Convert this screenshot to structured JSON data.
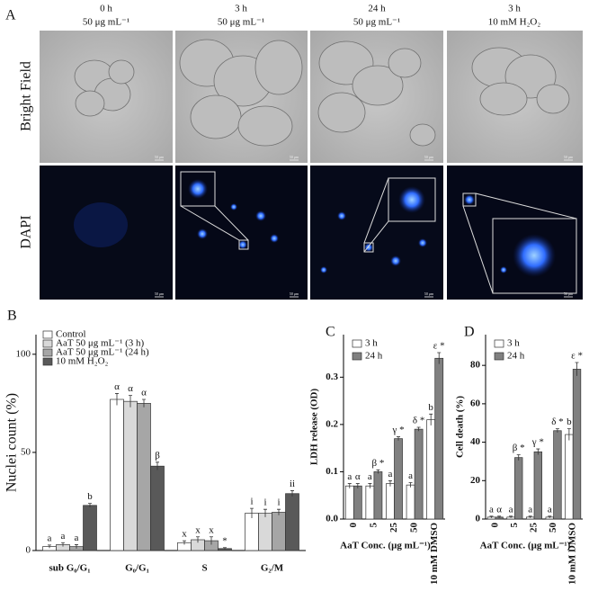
{
  "panel_a": {
    "panel": "A",
    "columns": [
      {
        "time": "0 h",
        "condition": "50 μg mL⁻¹"
      },
      {
        "time": "3 h",
        "condition": "50 μg mL⁻¹"
      },
      {
        "time": "24 h",
        "condition": "50 μg mL⁻¹"
      },
      {
        "time": "3 h",
        "condition": "10 mM H₂O₂"
      }
    ],
    "rows": [
      "Bright Field",
      "DAPI"
    ],
    "scale_bar": "50 μm"
  },
  "chart_data": [
    {
      "type": "bar",
      "panel": "B",
      "ylabel": "Nuclei count (%)",
      "categories": [
        "sub G₀/G₁",
        "G₀/G₁",
        "S",
        "G₂/M"
      ],
      "series": [
        {
          "name": "Control",
          "color": "#ffffff",
          "values": [
            2,
            77,
            4,
            19
          ],
          "errors": [
            0.8,
            3,
            1,
            2.5
          ],
          "annotations": [
            "a",
            "α",
            "x",
            "i"
          ]
        },
        {
          "name": "AaT 50 μg mL⁻¹ (3 h)",
          "color": "#d9d9d9",
          "values": [
            3,
            76,
            5.5,
            19
          ],
          "errors": [
            1,
            3,
            1.5,
            2
          ],
          "annotations": [
            "a",
            "α",
            "x",
            "i"
          ]
        },
        {
          "name": "AaT 50 μg mL⁻¹ (24 h)",
          "color": "#a6a6a6",
          "values": [
            2,
            75,
            5,
            19.5
          ],
          "errors": [
            1,
            2,
            2,
            1.5
          ],
          "annotations": [
            "a",
            "α",
            "x",
            "i"
          ]
        },
        {
          "name": "10 mM H₂O₂",
          "color": "#595959",
          "values": [
            23,
            43,
            1,
            29
          ],
          "errors": [
            1,
            2,
            0.5,
            1.5
          ],
          "annotations": [
            "b",
            "β",
            "*",
            "ii"
          ]
        }
      ],
      "ylim": [
        0,
        110
      ],
      "yticks": [
        0,
        50,
        100
      ]
    },
    {
      "type": "bar",
      "panel": "C",
      "ylabel": "LDH release (OD)",
      "xlabel": "AaT Conc. (μg mL⁻¹)",
      "categories": [
        "0",
        "5",
        "25",
        "50",
        "10 mM DMSO"
      ],
      "series": [
        {
          "name": "3 h",
          "color": "#ffffff",
          "values": [
            0.07,
            0.07,
            0.075,
            0.072,
            0.21
          ],
          "errors": [
            0.005,
            0.005,
            0.006,
            0.005,
            0.012
          ],
          "annotations": [
            "a",
            "a",
            "a",
            "a",
            "b"
          ]
        },
        {
          "name": "24 h",
          "color": "#808080",
          "values": [
            0.07,
            0.1,
            0.17,
            0.19,
            0.34
          ],
          "errors": [
            0.005,
            0.004,
            0.004,
            0.004,
            0.012
          ],
          "annotations": [
            "α",
            "β *",
            "γ *",
            "δ *",
            "ε *"
          ]
        }
      ],
      "ylim": [
        0,
        0.39
      ],
      "yticks": [
        {
          "value": 0,
          "label": "0.0"
        },
        0.1,
        0.2,
        0.3
      ]
    },
    {
      "type": "bar",
      "panel": "D",
      "ylabel": "Cell death (%)",
      "xlabel": "AaT Conc. (μg mL⁻¹)",
      "categories": [
        "0",
        "5",
        "25",
        "50",
        "10 mM DMSO"
      ],
      "series": [
        {
          "name": "3 h",
          "color": "#ffffff",
          "values": [
            1,
            1,
            1,
            1,
            44
          ],
          "errors": [
            0.5,
            0.5,
            0.5,
            0.5,
            3
          ],
          "annotations": [
            "a",
            "a",
            "a",
            "a",
            "b"
          ]
        },
        {
          "name": "24 h",
          "color": "#808080",
          "values": [
            1,
            32,
            35,
            46,
            78
          ],
          "errors": [
            0.5,
            1.5,
            1.5,
            1,
            3.5
          ],
          "annotations": [
            "α",
            "β *",
            "γ *",
            "δ *",
            "ε *"
          ]
        }
      ],
      "ylim": [
        0,
        96
      ],
      "yticks": [
        0,
        20,
        40,
        60,
        80
      ]
    }
  ]
}
